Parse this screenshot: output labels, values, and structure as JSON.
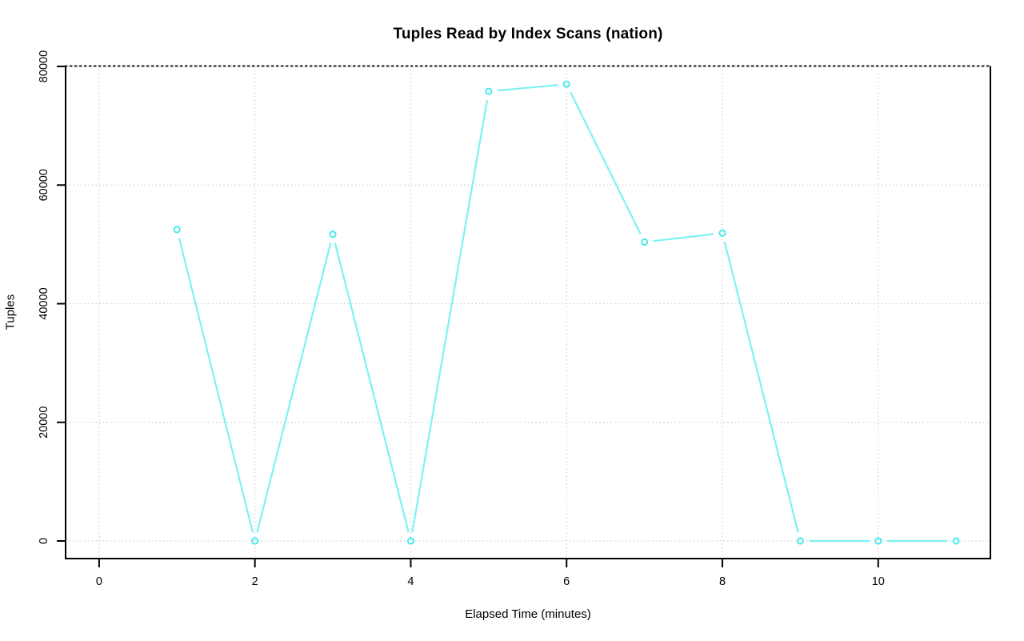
{
  "chart_data": {
    "type": "line",
    "title": "Tuples Read by Index Scans (nation)",
    "xlabel": "Elapsed Time (minutes)",
    "ylabel": "Tuples",
    "x_ticks": [
      0,
      2,
      4,
      6,
      8,
      10
    ],
    "y_ticks": [
      0,
      20000,
      40000,
      60000,
      80000
    ],
    "xlim": [
      -0.43,
      11.44
    ],
    "ylim": [
      -2970,
      80070
    ],
    "grid": true,
    "legend": "none",
    "series": [
      {
        "name": "nation",
        "x": [
          1,
          2,
          3,
          4,
          5,
          6,
          7,
          8,
          9,
          10,
          11
        ],
        "values": [
          52500,
          0,
          51700,
          0,
          75800,
          77000,
          50400,
          51900,
          0,
          0,
          0
        ]
      }
    ],
    "colors": {
      "line": "#7DF2F2",
      "marker": "#3FEAEA",
      "grid": "#C6C6C6",
      "axis": "#000000",
      "background": "#FFFFFF",
      "title_text": "#000000"
    }
  }
}
